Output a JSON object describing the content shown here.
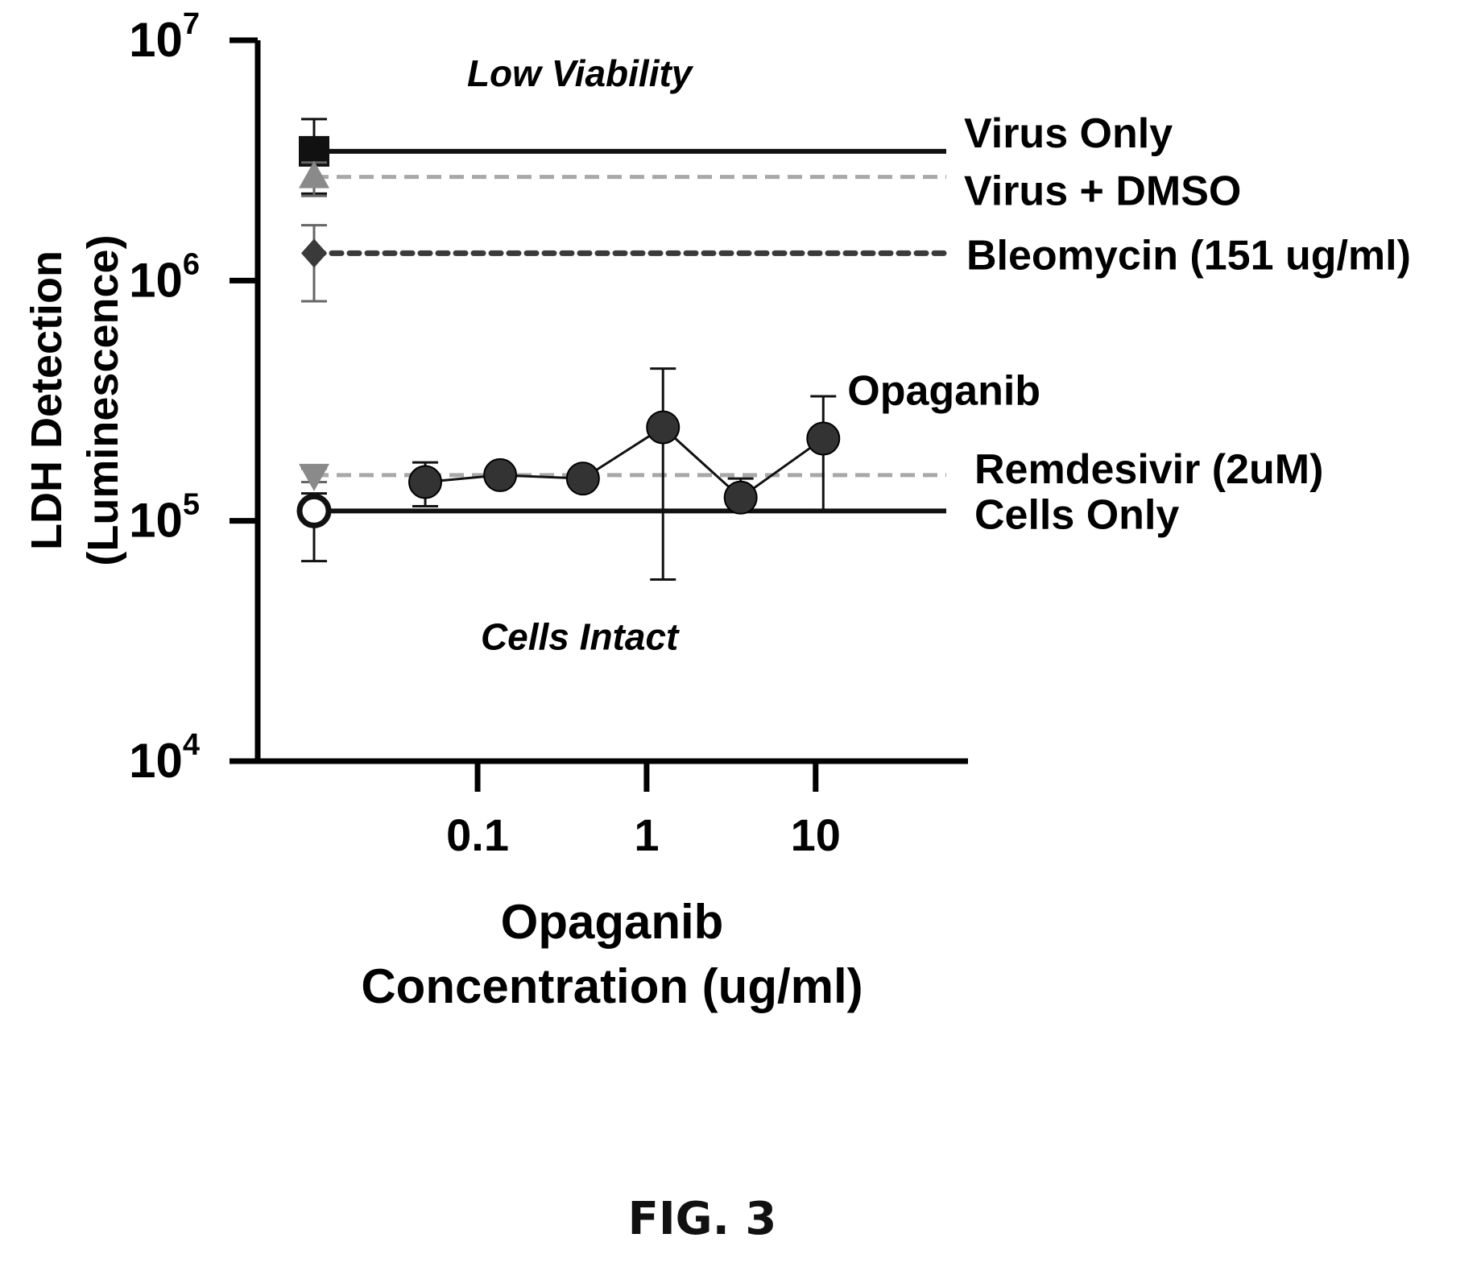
{
  "figure_label": "FIG. 3",
  "chart_data": {
    "type": "scatter",
    "title": "",
    "xlabel": [
      "Opaganib",
      "Concentration (ug/ml)"
    ],
    "ylabel": [
      "LDH Detection",
      "(Luminescence)"
    ],
    "x_scale": "log",
    "y_scale": "log",
    "ylim": [
      10000,
      10000000
    ],
    "xlim": [
      0.005,
      78
    ],
    "x_ticks": [
      {
        "value": 0.1,
        "label": "0.1"
      },
      {
        "value": 1,
        "label": "1"
      },
      {
        "value": 10,
        "label": "10"
      }
    ],
    "y_ticks": [
      {
        "value": 10000,
        "base": "10",
        "exp": "4"
      },
      {
        "value": 100000,
        "base": "10",
        "exp": "5"
      },
      {
        "value": 1000000,
        "base": "10",
        "exp": "6"
      },
      {
        "value": 10000000,
        "base": "10",
        "exp": "7"
      }
    ],
    "annotations": [
      {
        "text": "Low Viability",
        "x": 0.12,
        "y": 7300000
      },
      {
        "text": "Cells Intact",
        "x": 0.12,
        "y": 33000
      }
    ],
    "controls": [
      {
        "name": "Virus Only",
        "marker": "square",
        "color": "#111111",
        "line": "solid",
        "value": 3450000,
        "err": [
          2300000,
          4700000
        ]
      },
      {
        "name": "Virus + DMSO",
        "marker": "triangle-up",
        "color": "#8a8a8a",
        "line": "dashed",
        "value": 2700000,
        "err": [
          2250000,
          3100000
        ]
      },
      {
        "name": "Bleomycin (151 ug/ml)",
        "marker": "diamond",
        "color": "#3a3a3a",
        "line": "dotted",
        "value": 1300000,
        "err": [
          820000,
          1700000
        ]
      },
      {
        "name": "Remdesivir (2uM)",
        "marker": "triangle-down",
        "color": "#8a8a8a",
        "line": "dashed",
        "value": 155000,
        "err": [
          145000,
          165000
        ]
      },
      {
        "name": "Cells Only",
        "marker": "circle-open",
        "color": "#111111",
        "line": "solid",
        "value": 110000,
        "err": [
          68000,
          130000
        ]
      }
    ],
    "series": [
      {
        "name": "Opaganib",
        "marker": "circle",
        "color": "#333333",
        "x": [
          0.049,
          0.136,
          0.42,
          1.25,
          3.6,
          11.1
        ],
        "y": [
          145000,
          155000,
          150000,
          245000,
          125000,
          220000
        ],
        "err_low": [
          115000,
          150000,
          146000,
          57000,
          115000,
          110000
        ],
        "err_high": [
          175000,
          160000,
          155000,
          430000,
          150000,
          330000
        ]
      }
    ]
  }
}
